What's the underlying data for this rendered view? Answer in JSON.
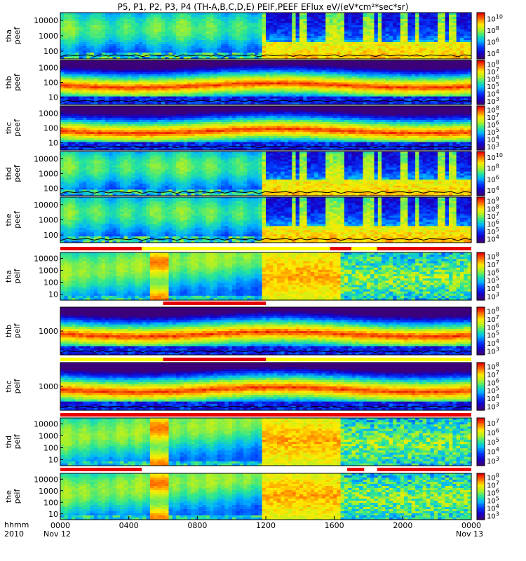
{
  "title": "P5, P1, P2, P3, P4 (TH-A,B,C,D,E) PEIF,PEEF EFlux eV/(eV*cm²*sec*sr)",
  "footer": {
    "row1": "hhmm",
    "row2": "2010",
    "start_date": "Nov 12",
    "end_date": "Nov 13"
  },
  "chart_data": {
    "type": "heatmap",
    "x_ticks": [
      "0000",
      "0400",
      "0800",
      "1200",
      "1600",
      "2000",
      "0000"
    ],
    "xlim": [
      "2010-11-12 00:00",
      "2010-11-13 00:00"
    ],
    "yscale": "log",
    "panels": [
      {
        "name": "tha peef",
        "y_ticks": [
          "10000",
          "1000",
          "100"
        ],
        "cbar_ticks": [
          "10^10",
          "10^8",
          "10^6",
          "10^4"
        ],
        "style": "mixed",
        "boundary": {
          "start": 0.62,
          "end": 0.94
        }
      },
      {
        "name": "thb peef",
        "y_ticks": [
          "1000",
          "100",
          "10"
        ],
        "cbar_ticks": [
          "10^8",
          "10^7",
          "10^6",
          "10^5",
          "10^4",
          "10^3"
        ],
        "style": "band",
        "boundary": {
          "start": 0.82,
          "end": 0.9
        }
      },
      {
        "name": "thc peef",
        "y_ticks": [
          "1000",
          "100",
          "10"
        ],
        "cbar_ticks": [
          "10^8",
          "10^7",
          "10^6",
          "10^5",
          "10^4",
          "10^3"
        ],
        "style": "band",
        "boundary": {
          "start": 0.82,
          "end": 0.95
        }
      },
      {
        "name": "thd peef",
        "y_ticks": [
          "10000",
          "1000",
          "100"
        ],
        "cbar_ticks": [
          "10^10",
          "10^8",
          "10^6",
          "10^4"
        ],
        "style": "mixed",
        "boundary": {
          "start": 0.62,
          "end": 0.94
        }
      },
      {
        "name": "the peef",
        "y_ticks": [
          "10000",
          "1000",
          "100"
        ],
        "cbar_ticks": [
          "10^9",
          "10^8",
          "10^7",
          "10^6",
          "10^5",
          "10^4"
        ],
        "style": "mixed",
        "boundary": {
          "start": 0.62,
          "end": 0.96
        }
      },
      {
        "name": "tha peif",
        "y_ticks": [
          "10000",
          "1000",
          "100",
          "10"
        ],
        "cbar_ticks": [
          "10^8",
          "10^7",
          "10^6",
          "10^5",
          "10^4",
          "10^3"
        ],
        "style": "ion",
        "boundary": {
          "start": 0.55,
          "end": 0.86
        }
      },
      {
        "name": "thb peif",
        "y_ticks": [
          "1000"
        ],
        "cbar_ticks": [
          "10^8",
          "10^7",
          "10^6",
          "10^5",
          "10^4",
          "10^3"
        ],
        "style": "band",
        "boundary": {
          "start": 0.62,
          "end": 0.8
        }
      },
      {
        "name": "thc peif",
        "y_ticks": [
          "1000"
        ],
        "cbar_ticks": [
          "10^8",
          "10^7",
          "10^6",
          "10^5",
          "10^4",
          "10^3"
        ],
        "style": "band",
        "boundary": {
          "start": 0.62,
          "end": 0.82
        }
      },
      {
        "name": "thd peif",
        "y_ticks": [
          "10000",
          "1000",
          "100",
          "10"
        ],
        "cbar_ticks": [
          "10^7",
          "10^6",
          "10^5",
          "10^4",
          "10^3"
        ],
        "style": "ion",
        "boundary": {
          "start": 0.55,
          "end": 0.86
        }
      },
      {
        "name": "the peif",
        "y_ticks": [
          "10000",
          "1000",
          "100",
          "10"
        ],
        "cbar_ticks": [
          "10^8",
          "10^7",
          "10^6",
          "10^5",
          "10^4",
          "10^3"
        ],
        "style": "ion",
        "boundary": {
          "start": 0.55,
          "end": 0.86
        }
      }
    ],
    "mode_bars": [
      [
        {
          "from": "0000",
          "to": "0445",
          "color": "red"
        },
        {
          "from": "0445",
          "to": "1545",
          "color": "yellow"
        },
        {
          "from": "1545",
          "to": "1700",
          "color": "red"
        },
        {
          "from": "1700",
          "to": "1830",
          "color": "yellow"
        },
        {
          "from": "1830",
          "to": "0000",
          "color": "red"
        }
      ],
      [
        {
          "from": "0000",
          "to": "0600",
          "color": "white"
        },
        {
          "from": "0600",
          "to": "1200",
          "color": "red"
        },
        {
          "from": "1200",
          "to": "0000",
          "color": "white"
        }
      ],
      [
        {
          "from": "0000",
          "to": "0600",
          "color": "yellow"
        },
        {
          "from": "0600",
          "to": "1200",
          "color": "red"
        },
        {
          "from": "1200",
          "to": "0000",
          "color": "yellow"
        }
      ],
      [
        {
          "from": "0000",
          "to": "0000",
          "color": "red"
        }
      ],
      [
        {
          "from": "0000",
          "to": "0445",
          "color": "red"
        },
        {
          "from": "0445",
          "to": "1645",
          "color": "white"
        },
        {
          "from": "1645",
          "to": "1745",
          "color": "red"
        },
        {
          "from": "1745",
          "to": "1830",
          "color": "white"
        },
        {
          "from": "1830",
          "to": "0000",
          "color": "red"
        }
      ]
    ]
  }
}
